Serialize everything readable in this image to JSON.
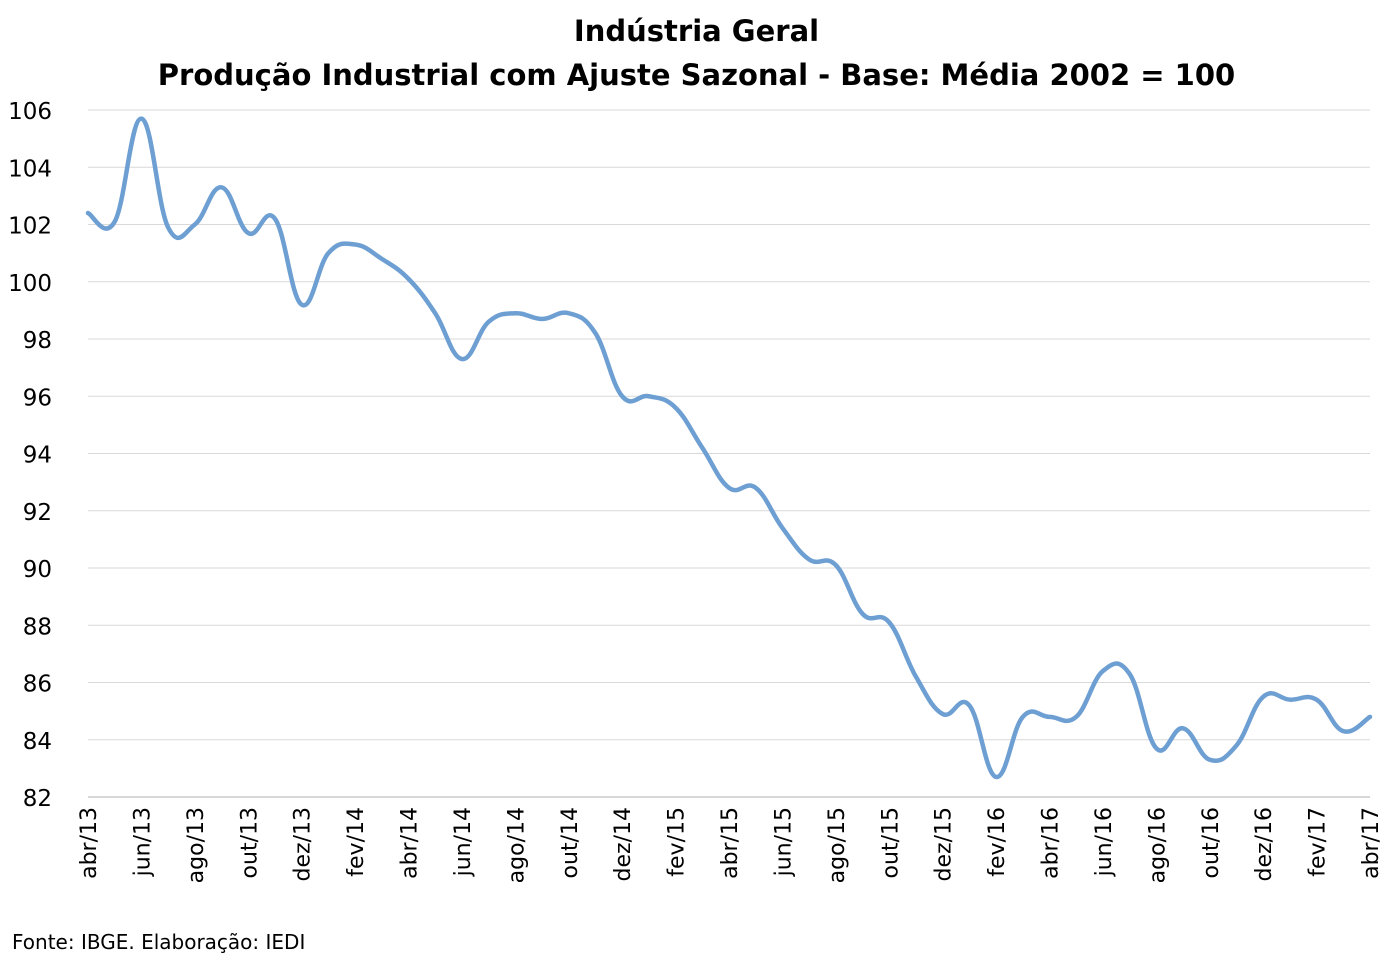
{
  "chart_data": {
    "type": "line",
    "title": "Indústria Geral",
    "subtitle": "Produção Industrial com Ajuste Sazonal - Base: Média 2002 = 100",
    "xlabel": "",
    "ylabel": "",
    "ylim": [
      82,
      106
    ],
    "yticks": [
      82,
      84,
      86,
      88,
      90,
      92,
      94,
      96,
      98,
      100,
      102,
      104,
      106
    ],
    "grid": true,
    "legend": "none",
    "line_color": "#6e9fd2",
    "categories": [
      "abr/13",
      "mai/13",
      "jun/13",
      "jul/13",
      "ago/13",
      "set/13",
      "out/13",
      "nov/13",
      "dez/13",
      "jan/14",
      "fev/14",
      "mar/14",
      "abr/14",
      "mai/14",
      "jun/14",
      "jul/14",
      "ago/14",
      "set/14",
      "out/14",
      "nov/14",
      "dez/14",
      "jan/15",
      "fev/15",
      "mar/15",
      "abr/15",
      "mai/15",
      "jun/15",
      "jul/15",
      "ago/15",
      "set/15",
      "out/15",
      "nov/15",
      "dez/15",
      "jan/16",
      "fev/16",
      "mar/16",
      "abr/16",
      "mai/16",
      "jun/16",
      "jul/16",
      "ago/16",
      "set/16",
      "out/16",
      "nov/16",
      "dez/16",
      "jan/17",
      "fev/17",
      "mar/17",
      "abr/17"
    ],
    "tick_labels": [
      "abr/13",
      "jun/13",
      "ago/13",
      "out/13",
      "dez/13",
      "fev/14",
      "abr/14",
      "jun/14",
      "ago/14",
      "out/14",
      "dez/14",
      "fev/15",
      "abr/15",
      "jun/15",
      "ago/15",
      "out/15",
      "dez/15",
      "fev/16",
      "abr/16",
      "jun/16",
      "ago/16",
      "out/16",
      "dez/16",
      "fev/17",
      "abr/17"
    ],
    "series": [
      {
        "values": [
          102.4,
          102.1,
          105.7,
          101.9,
          102.0,
          103.3,
          101.7,
          102.2,
          99.2,
          101.0,
          101.3,
          100.8,
          100.1,
          98.9,
          97.3,
          98.6,
          98.9,
          98.7,
          98.9,
          98.2,
          96.0,
          96.0,
          95.6,
          94.2,
          92.8,
          92.8,
          91.4,
          90.3,
          90.1,
          88.4,
          88.1,
          86.2,
          84.9,
          85.2,
          82.7,
          84.8,
          84.8,
          84.8,
          86.4,
          86.3,
          83.7,
          84.4,
          83.3,
          83.8,
          85.5,
          85.4,
          85.4,
          84.3,
          84.8
        ]
      }
    ]
  },
  "footer": {
    "source": "Fonte: IBGE. Elaboração: IEDI"
  }
}
